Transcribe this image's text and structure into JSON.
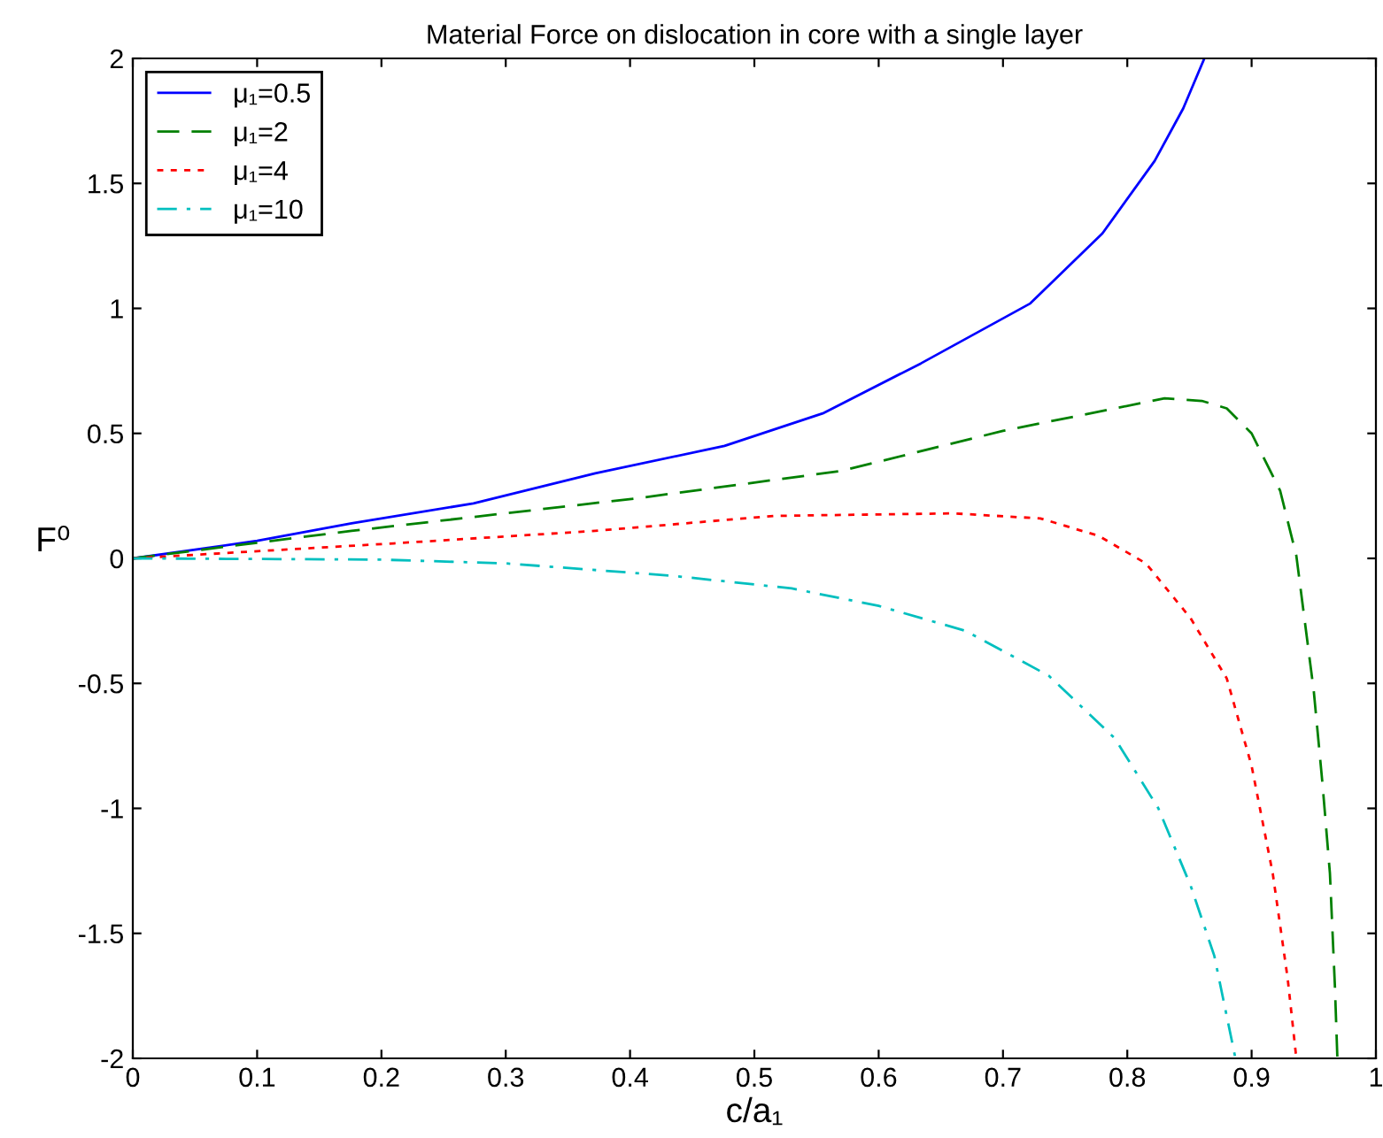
{
  "chart_data": {
    "type": "line",
    "title": "Material Force on dislocation in core with a single layer",
    "xlabel": "c/a₁",
    "ylabel": "F⁰",
    "xlim": [
      0,
      1
    ],
    "ylim": [
      -2,
      2
    ],
    "xticks": [
      0,
      0.1,
      0.2,
      0.3,
      0.4,
      0.5,
      0.6,
      0.7,
      0.8,
      0.9,
      1
    ],
    "yticks": [
      -2,
      -1.5,
      -1,
      -0.5,
      0,
      0.5,
      1,
      1.5,
      2
    ],
    "grid": false,
    "legend": "top left",
    "marker": "none",
    "series": [
      {
        "name": "μ₁=0.5",
        "color": "#0000ff",
        "line_style": "solid",
        "x": [
          0,
          0.1,
          0.176,
          0.274,
          0.372,
          0.476,
          0.555,
          0.634,
          0.722,
          0.78,
          0.822,
          0.845,
          0.862
        ],
        "values": [
          0,
          0.07,
          0.14,
          0.22,
          0.34,
          0.45,
          0.58,
          0.78,
          1.02,
          1.3,
          1.59,
          1.8,
          2
        ]
      },
      {
        "name": "μ₁=2",
        "color": "#008000",
        "line_style": "dashed",
        "x": [
          0,
          0.176,
          0.405,
          0.57,
          0.7,
          0.83,
          0.86,
          0.88,
          0.9,
          0.923,
          0.936,
          0.95,
          0.957,
          0.963,
          0.967,
          0.969
        ],
        "values": [
          0,
          0.11,
          0.24,
          0.35,
          0.51,
          0.64,
          0.63,
          0.6,
          0.5,
          0.27,
          0.01,
          -0.53,
          -0.9,
          -1.26,
          -1.71,
          -2
        ]
      },
      {
        "name": "μ₁=4",
        "color": "#ff0000",
        "line_style": "dotted",
        "x": [
          0,
          0.21,
          0.372,
          0.516,
          0.66,
          0.73,
          0.777,
          0.815,
          0.851,
          0.88,
          0.9,
          0.917,
          0.929,
          0.936
        ],
        "values": [
          0,
          0.06,
          0.11,
          0.17,
          0.18,
          0.16,
          0.09,
          -0.02,
          -0.24,
          -0.48,
          -0.83,
          -1.26,
          -1.68,
          -2
        ]
      },
      {
        "name": "μ₁=10",
        "color": "#00bfbf",
        "line_style": "dashdot",
        "x": [
          0,
          0.2,
          0.3,
          0.435,
          0.53,
          0.6,
          0.67,
          0.737,
          0.79,
          0.825,
          0.851,
          0.87,
          0.887
        ],
        "values": [
          0,
          -0.005,
          -0.02,
          -0.07,
          -0.12,
          -0.19,
          -0.29,
          -0.47,
          -0.72,
          -1.0,
          -1.31,
          -1.59,
          -2
        ]
      }
    ]
  }
}
